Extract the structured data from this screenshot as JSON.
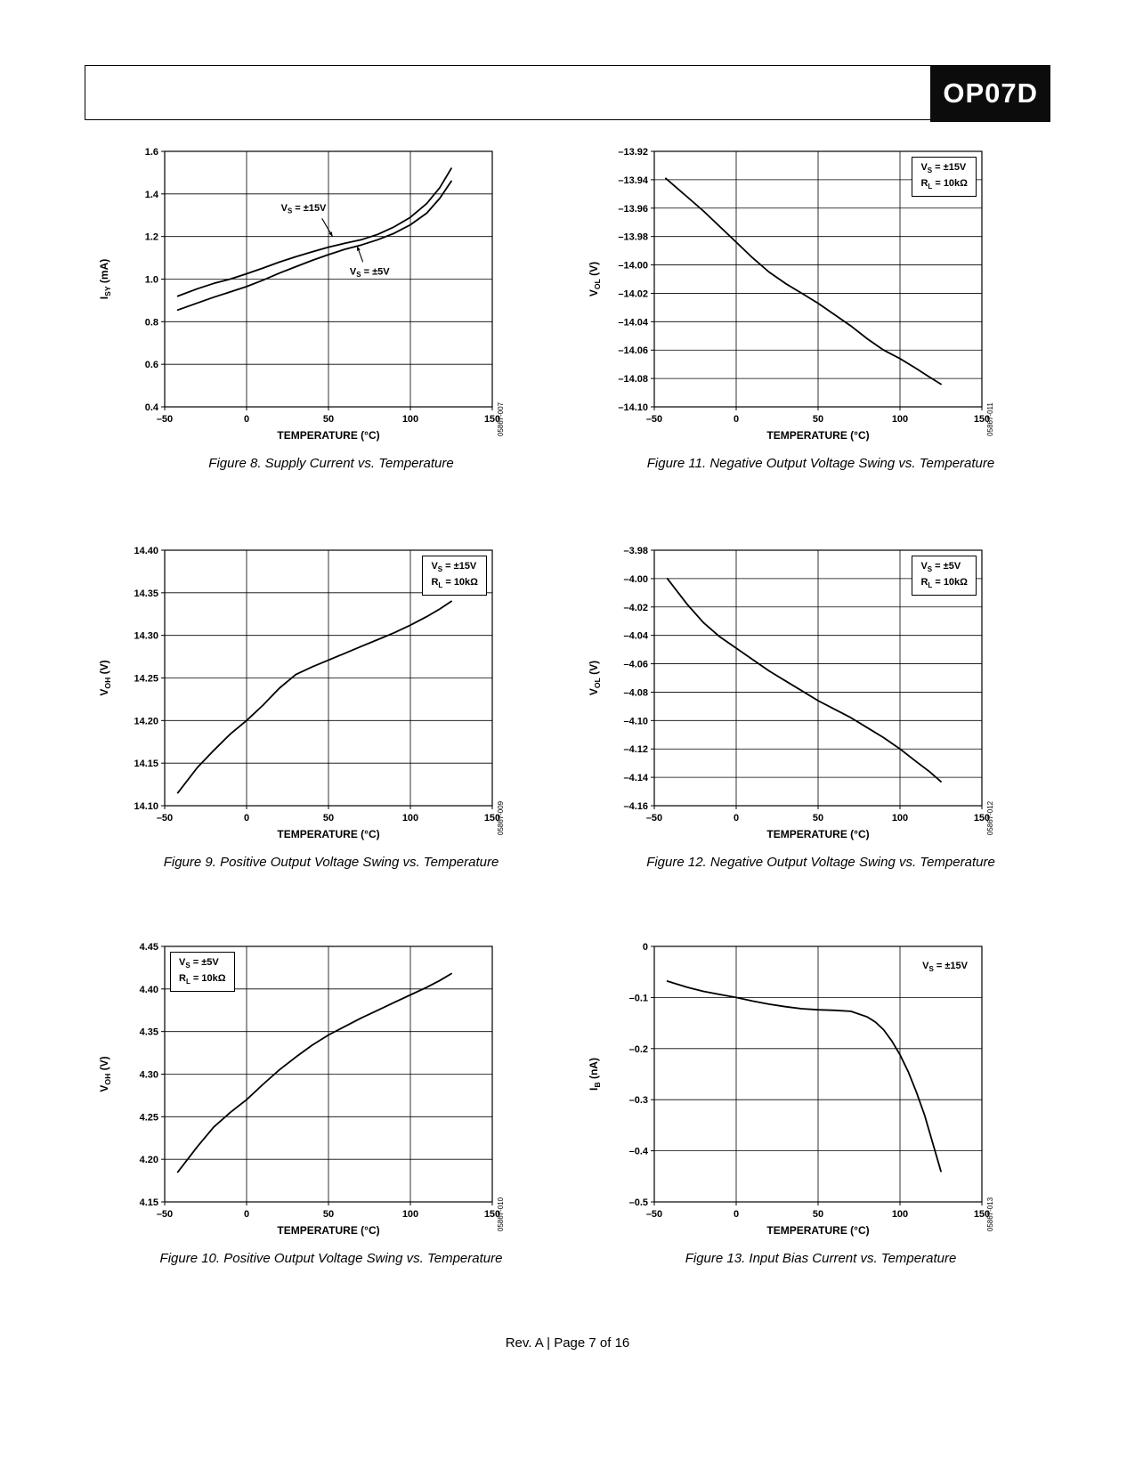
{
  "header": {
    "part_number": "OP07D"
  },
  "footer": {
    "text": "Rev. A | Page 7 of 16"
  },
  "chart_data": [
    {
      "type": "line",
      "caption": "Figure 8. Supply Current vs. Temperature",
      "code": "05867-007",
      "xlabel": "TEMPERATURE (°C)",
      "ylabel": "I~SY~ (mA)",
      "xlim": [
        -50,
        150
      ],
      "ylim": [
        0.4,
        1.6
      ],
      "xticks": [
        "–50",
        "0",
        "50",
        "100",
        "150"
      ],
      "yticks": [
        "1.6",
        "1.4",
        "1.2",
        "1.0",
        "0.8",
        "0.6",
        "0.4"
      ],
      "series": [
        {
          "name": "V~S~ = ±15V",
          "points": [
            [
              -42,
              0.92
            ],
            [
              -30,
              0.955
            ],
            [
              -20,
              0.98
            ],
            [
              -10,
              1.0
            ],
            [
              0,
              1.025
            ],
            [
              10,
              1.052
            ],
            [
              20,
              1.08
            ],
            [
              30,
              1.105
            ],
            [
              40,
              1.128
            ],
            [
              50,
              1.15
            ],
            [
              60,
              1.168
            ],
            [
              70,
              1.185
            ],
            [
              80,
              1.21
            ],
            [
              90,
              1.245
            ],
            [
              100,
              1.29
            ],
            [
              110,
              1.355
            ],
            [
              118,
              1.43
            ],
            [
              125,
              1.52
            ]
          ]
        },
        {
          "name": "V~S~ = ±5V",
          "points": [
            [
              -42,
              0.855
            ],
            [
              -30,
              0.888
            ],
            [
              -20,
              0.915
            ],
            [
              -10,
              0.94
            ],
            [
              0,
              0.965
            ],
            [
              10,
              0.995
            ],
            [
              20,
              1.028
            ],
            [
              30,
              1.058
            ],
            [
              40,
              1.088
            ],
            [
              50,
              1.115
            ],
            [
              60,
              1.14
            ],
            [
              70,
              1.16
            ],
            [
              80,
              1.185
            ],
            [
              90,
              1.215
            ],
            [
              100,
              1.255
            ],
            [
              110,
              1.31
            ],
            [
              118,
              1.38
            ],
            [
              125,
              1.46
            ]
          ]
        }
      ],
      "labels": [
        {
          "text": "V~S~ = ±15V",
          "x": 21,
          "y": 1.32,
          "anchor": "start",
          "arrow": [
            46,
            1.285,
            52.5,
            1.2
          ]
        },
        {
          "text": "V~S~ = ±5V",
          "x": 63,
          "y": 1.02,
          "anchor": "start",
          "arrow": [
            71,
            1.08,
            67.5,
            1.155
          ]
        }
      ],
      "conditions": null
    },
    {
      "type": "line",
      "caption": "Figure 11. Negative Output Voltage Swing vs. Temperature",
      "code": "05867-011",
      "xlabel": "TEMPERATURE (°C)",
      "ylabel": "V~OL~ (V)",
      "xlim": [
        -50,
        150
      ],
      "ylim": [
        -14.1,
        -13.92
      ],
      "xticks": [
        "–50",
        "0",
        "50",
        "100",
        "150"
      ],
      "yticks": [
        "–13.92",
        "–13.94",
        "–13.96",
        "–13.98",
        "–14.00",
        "–14.02",
        "–14.04",
        "–14.06",
        "–14.08",
        "–14.10"
      ],
      "series": [
        {
          "name": "V~S~ = ±15V",
          "points": [
            [
              -43,
              -13.939
            ],
            [
              -30,
              -13.952
            ],
            [
              -20,
              -13.962
            ],
            [
              -10,
              -13.973
            ],
            [
              0,
              -13.984
            ],
            [
              10,
              -13.995
            ],
            [
              20,
              -14.005
            ],
            [
              30,
              -14.013
            ],
            [
              40,
              -14.02
            ],
            [
              50,
              -14.027
            ],
            [
              60,
              -14.035
            ],
            [
              70,
              -14.043
            ],
            [
              80,
              -14.052
            ],
            [
              90,
              -14.06
            ],
            [
              100,
              -14.066
            ],
            [
              110,
              -14.073
            ],
            [
              118,
              -14.079
            ],
            [
              125,
              -14.084
            ]
          ]
        }
      ],
      "labels": [],
      "conditions": {
        "lines": [
          "V~S~ = ±15V",
          "R~L~ = 10kΩ"
        ],
        "pos": "tr",
        "border": true
      }
    },
    {
      "type": "line",
      "caption": "Figure 9. Positive Output Voltage Swing vs. Temperature",
      "code": "05867-009",
      "xlabel": "TEMPERATURE (°C)",
      "ylabel": "V~OH~ (V)",
      "xlim": [
        -50,
        150
      ],
      "ylim": [
        14.1,
        14.4
      ],
      "xticks": [
        "–50",
        "0",
        "50",
        "100",
        "150"
      ],
      "yticks": [
        "14.40",
        "14.35",
        "14.30",
        "14.25",
        "14.20",
        "14.15",
        "14.10"
      ],
      "series": [
        {
          "name": "V~S~ = ±15V",
          "points": [
            [
              -42,
              14.115
            ],
            [
              -30,
              14.145
            ],
            [
              -20,
              14.165
            ],
            [
              -10,
              14.184
            ],
            [
              0,
              14.2
            ],
            [
              10,
              14.218
            ],
            [
              20,
              14.238
            ],
            [
              30,
              14.254
            ],
            [
              40,
              14.263
            ],
            [
              50,
              14.271
            ],
            [
              60,
              14.279
            ],
            [
              70,
              14.287
            ],
            [
              80,
              14.295
            ],
            [
              90,
              14.303
            ],
            [
              100,
              14.312
            ],
            [
              110,
              14.322
            ],
            [
              118,
              14.331
            ],
            [
              125,
              14.34
            ]
          ]
        }
      ],
      "labels": [],
      "conditions": {
        "lines": [
          "V~S~ = ±15V",
          "R~L~ = 10kΩ"
        ],
        "pos": "tr",
        "border": true
      }
    },
    {
      "type": "line",
      "caption": "Figure 12. Negative Output Voltage Swing vs. Temperature",
      "code": "05867-012",
      "xlabel": "TEMPERATURE (°C)",
      "ylabel": "V~OL~ (V)",
      "xlim": [
        -50,
        150
      ],
      "ylim": [
        -4.16,
        -3.98
      ],
      "xticks": [
        "–50",
        "0",
        "50",
        "100",
        "150"
      ],
      "yticks": [
        "–3.98",
        "–4.00",
        "–4.02",
        "–4.04",
        "–4.06",
        "–4.08",
        "–4.10",
        "–4.12",
        "–4.14",
        "–4.16"
      ],
      "series": [
        {
          "name": "V~S~ = ±5V",
          "points": [
            [
              -42,
              -4.0
            ],
            [
              -30,
              -4.018
            ],
            [
              -20,
              -4.031
            ],
            [
              -10,
              -4.041
            ],
            [
              0,
              -4.049
            ],
            [
              10,
              -4.057
            ],
            [
              20,
              -4.065
            ],
            [
              30,
              -4.072
            ],
            [
              40,
              -4.079
            ],
            [
              50,
              -4.086
            ],
            [
              60,
              -4.092
            ],
            [
              70,
              -4.098
            ],
            [
              80,
              -4.105
            ],
            [
              90,
              -4.112
            ],
            [
              100,
              -4.12
            ],
            [
              110,
              -4.129
            ],
            [
              118,
              -4.136
            ],
            [
              125,
              -4.143
            ]
          ]
        }
      ],
      "labels": [],
      "conditions": {
        "lines": [
          "V~S~ = ±5V",
          "R~L~ = 10kΩ"
        ],
        "pos": "tr",
        "border": true
      }
    },
    {
      "type": "line",
      "caption": "Figure 10. Positive Output Voltage Swing vs. Temperature",
      "code": "05867-010",
      "xlabel": "TEMPERATURE (°C)",
      "ylabel": "V~OH~ (V)",
      "xlim": [
        -50,
        150
      ],
      "ylim": [
        4.15,
        4.45
      ],
      "xticks": [
        "–50",
        "0",
        "50",
        "100",
        "150"
      ],
      "yticks": [
        "4.45",
        "4.40",
        "4.35",
        "4.30",
        "4.25",
        "4.20",
        "4.15"
      ],
      "series": [
        {
          "name": "V~S~ = ±5V",
          "points": [
            [
              -42,
              4.185
            ],
            [
              -30,
              4.215
            ],
            [
              -20,
              4.238
            ],
            [
              -10,
              4.255
            ],
            [
              0,
              4.27
            ],
            [
              10,
              4.288
            ],
            [
              20,
              4.305
            ],
            [
              30,
              4.32
            ],
            [
              40,
              4.334
            ],
            [
              50,
              4.346
            ],
            [
              60,
              4.356
            ],
            [
              70,
              4.366
            ],
            [
              80,
              4.375
            ],
            [
              90,
              4.384
            ],
            [
              100,
              4.393
            ],
            [
              110,
              4.402
            ],
            [
              118,
              4.41
            ],
            [
              125,
              4.418
            ]
          ]
        }
      ],
      "labels": [],
      "conditions": {
        "lines": [
          "V~S~ = ±5V",
          "R~L~ = 10kΩ"
        ],
        "pos": "tl",
        "border": true
      }
    },
    {
      "type": "line",
      "caption": "Figure 13. Input Bias Current vs. Temperature",
      "code": "05867-013",
      "xlabel": "TEMPERATURE (°C)",
      "ylabel": "I~B~ (nA)",
      "xlim": [
        -50,
        150
      ],
      "ylim": [
        -0.5,
        0
      ],
      "xticks": [
        "–50",
        "0",
        "50",
        "100",
        "150"
      ],
      "yticks": [
        "0",
        "–0.1",
        "–0.2",
        "–0.3",
        "–0.4",
        "–0.5"
      ],
      "series": [
        {
          "name": "V~S~ = ±15V",
          "points": [
            [
              -42,
              -0.068
            ],
            [
              -30,
              -0.08
            ],
            [
              -20,
              -0.088
            ],
            [
              -10,
              -0.094
            ],
            [
              0,
              -0.1
            ],
            [
              10,
              -0.107
            ],
            [
              20,
              -0.113
            ],
            [
              30,
              -0.118
            ],
            [
              40,
              -0.122
            ],
            [
              50,
              -0.124
            ],
            [
              60,
              -0.125
            ],
            [
              70,
              -0.127
            ],
            [
              80,
              -0.138
            ],
            [
              85,
              -0.148
            ],
            [
              90,
              -0.163
            ],
            [
              95,
              -0.185
            ],
            [
              100,
              -0.212
            ],
            [
              105,
              -0.245
            ],
            [
              110,
              -0.285
            ],
            [
              115,
              -0.33
            ],
            [
              120,
              -0.385
            ],
            [
              125,
              -0.44
            ]
          ]
        }
      ],
      "labels": [],
      "conditions": {
        "lines": [
          "V~S~ = ±15V"
        ],
        "pos": "tr",
        "border": false,
        "inset": [
          14,
          16
        ]
      }
    }
  ]
}
